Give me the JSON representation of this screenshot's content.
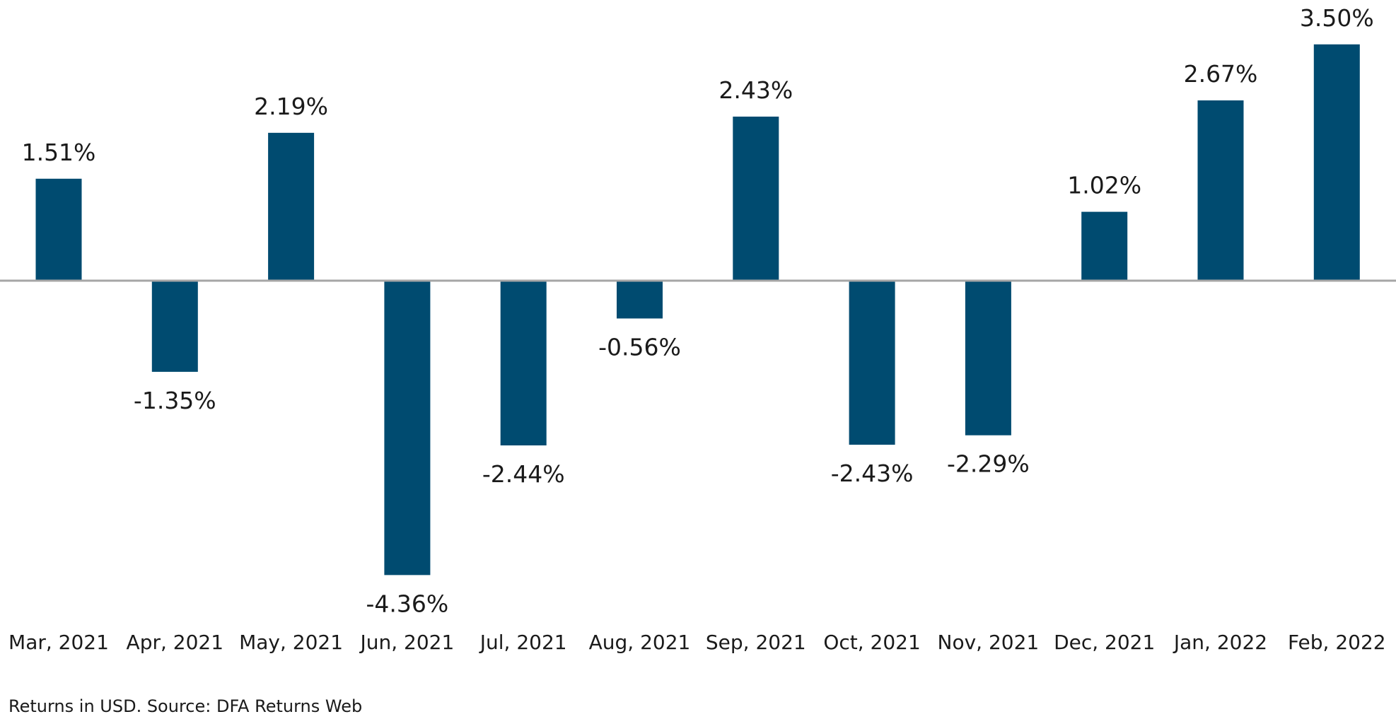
{
  "chart_data": {
    "type": "bar",
    "categories": [
      "Mar, 2021",
      "Apr, 2021",
      "May, 2021",
      "Jun, 2021",
      "Jul, 2021",
      "Aug, 2021",
      "Sep, 2021",
      "Oct, 2021",
      "Nov, 2021",
      "Dec, 2021",
      "Jan, 2022",
      "Feb, 2022"
    ],
    "values": [
      1.51,
      -1.35,
      2.19,
      -4.36,
      -2.44,
      -0.56,
      2.43,
      -2.43,
      -2.29,
      1.02,
      2.67,
      3.5
    ],
    "data_labels": [
      "1.51%",
      "-1.35%",
      "2.19%",
      "-4.36%",
      "-2.44%",
      "-0.56%",
      "2.43%",
      "-2.43%",
      "-2.29%",
      "1.02%",
      "2.67%",
      "3.50%"
    ],
    "title": "",
    "xlabel": "",
    "ylabel": "",
    "ylim": [
      -4.36,
      3.5
    ],
    "grid": false,
    "legend": "none",
    "bar_color": "#004b70",
    "baseline_color": "#a6a6a6"
  },
  "footnote": "Returns in USD. Source: DFA Returns Web"
}
